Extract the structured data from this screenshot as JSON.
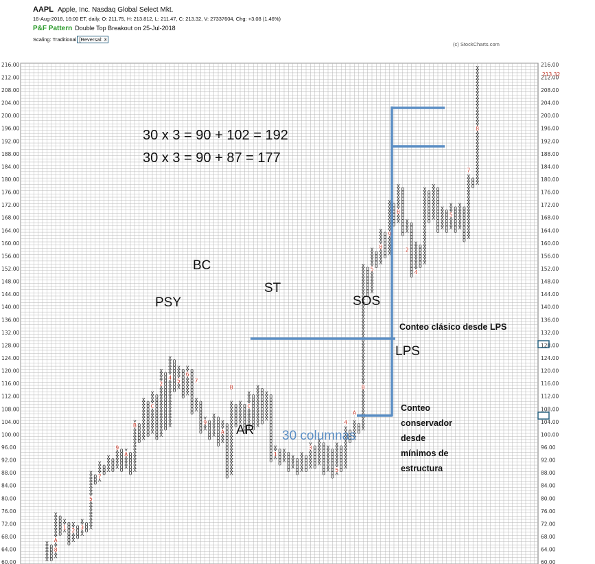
{
  "header": {
    "symbol": "AAPL",
    "company": "Apple, Inc.  Nasdaq Global Select Mkt.",
    "quote_line": "16-Aug-2018, 16:00 ET, daily, O: 211.75, H: 213.812, L: 211.47, C: 213.32, V: 27337604, Chg: +3.08 (1.46%)",
    "pf_label": "P&F Pattern",
    "pattern": "Double Top Breakout on 25-Jul-2018",
    "scaling": "Scaling: Traditional",
    "reversal": "[Reversal: 3",
    "copyright": "(c) StockCharts.com"
  },
  "colors": {
    "x": "#333333",
    "o": "#333333",
    "month": "#c0392b",
    "annotation_blue": "#5b8ec4",
    "grid": "#b5b5b5",
    "highlight_box": "#27607f"
  },
  "chart_data": {
    "type": "point_and_figure",
    "box_size": 1,
    "reversal": 3,
    "ylim": [
      60,
      216
    ],
    "left_axis_ticks": [
      "216.00",
      "212.00",
      "208.00",
      "204.00",
      "200.00",
      "196.00",
      "192.00",
      "188.00",
      "184.00",
      "180.00",
      "176.00",
      "172.00",
      "168.00",
      "164.00",
      "160.00",
      "156.00",
      "152.00",
      "148.00",
      "144.00",
      "140.00",
      "136.00",
      "132.00",
      "128.00",
      "124.00",
      "120.00",
      "116.00",
      "112.00",
      "108.00",
      "104.00",
      "100.00",
      "96.00",
      "92.00",
      "88.00",
      "84.00",
      "80.00",
      "76.00",
      "72.00",
      "68.00",
      "64.00",
      "60.00"
    ],
    "right_axis_ticks": [
      "216.00",
      "212.00",
      "208.00",
      "204.00",
      "200.00",
      "196.00",
      "192.00",
      "188.00",
      "184.00",
      "180.00",
      "176.00",
      "172.00",
      "168.00",
      "164.00",
      "160.00",
      "156.00",
      "152.00",
      "148.00",
      "144.00",
      "140.00",
      "136.00",
      "132.00",
      "128.00",
      "124.00",
      "120.00",
      "116.00",
      "112.00",
      "108.00",
      "104.00",
      "100.00",
      "96.00",
      "92.00",
      "88.00",
      "84.00",
      "80.00",
      "76.00",
      "72.00",
      "68.00",
      "64.00",
      "60.00"
    ],
    "last_price_label": "213.32",
    "highlighted_levels": [
      102,
      87
    ],
    "columns": [
      {
        "t": "X",
        "lo": 61,
        "hi": 66
      },
      {
        "t": "O",
        "lo": 61,
        "hi": 65
      },
      {
        "t": "X",
        "lo": 62,
        "hi": 75
      },
      {
        "t": "O",
        "lo": 69,
        "hi": 74
      },
      {
        "t": "X",
        "lo": 70,
        "hi": 73
      },
      {
        "t": "O",
        "lo": 66,
        "hi": 72
      },
      {
        "t": "X",
        "lo": 67,
        "hi": 72
      },
      {
        "t": "O",
        "lo": 68,
        "hi": 71
      },
      {
        "t": "X",
        "lo": 69,
        "hi": 73
      },
      {
        "t": "O",
        "lo": 70,
        "hi": 72
      },
      {
        "t": "X",
        "lo": 71,
        "hi": 88
      },
      {
        "t": "O",
        "lo": 85,
        "hi": 87
      },
      {
        "t": "X",
        "lo": 86,
        "hi": 91
      },
      {
        "t": "O",
        "lo": 88,
        "hi": 90
      },
      {
        "t": "X",
        "lo": 89,
        "hi": 93
      },
      {
        "t": "O",
        "lo": 89,
        "hi": 92
      },
      {
        "t": "X",
        "lo": 90,
        "hi": 96
      },
      {
        "t": "O",
        "lo": 89,
        "hi": 95
      },
      {
        "t": "X",
        "lo": 90,
        "hi": 95
      },
      {
        "t": "O",
        "lo": 88,
        "hi": 94
      },
      {
        "t": "X",
        "lo": 89,
        "hi": 104
      },
      {
        "t": "O",
        "lo": 98,
        "hi": 103
      },
      {
        "t": "X",
        "lo": 99,
        "hi": 111
      },
      {
        "t": "O",
        "lo": 100,
        "hi": 110
      },
      {
        "t": "X",
        "lo": 101,
        "hi": 113
      },
      {
        "t": "O",
        "lo": 99,
        "hi": 112
      },
      {
        "t": "X",
        "lo": 100,
        "hi": 120
      },
      {
        "t": "O",
        "lo": 102,
        "hi": 119
      },
      {
        "t": "X",
        "lo": 103,
        "hi": 124
      },
      {
        "t": "O",
        "lo": 114,
        "hi": 123
      },
      {
        "t": "X",
        "lo": 115,
        "hi": 121
      },
      {
        "t": "O",
        "lo": 112,
        "hi": 120
      },
      {
        "t": "X",
        "lo": 113,
        "hi": 121
      },
      {
        "t": "O",
        "lo": 107,
        "hi": 120
      },
      {
        "t": "X",
        "lo": 108,
        "hi": 111
      },
      {
        "t": "O",
        "lo": 101,
        "hi": 110
      },
      {
        "t": "X",
        "lo": 102,
        "hi": 105
      },
      {
        "t": "O",
        "lo": 99,
        "hi": 104
      },
      {
        "t": "X",
        "lo": 100,
        "hi": 106
      },
      {
        "t": "O",
        "lo": 97,
        "hi": 105
      },
      {
        "t": "X",
        "lo": 98,
        "hi": 104
      },
      {
        "t": "O",
        "lo": 87,
        "hi": 103
      },
      {
        "t": "X",
        "lo": 88,
        "hi": 110
      },
      {
        "t": "O",
        "lo": 103,
        "hi": 109
      },
      {
        "t": "X",
        "lo": 104,
        "hi": 110
      },
      {
        "t": "O",
        "lo": 101,
        "hi": 109
      },
      {
        "t": "X",
        "lo": 102,
        "hi": 113
      },
      {
        "t": "O",
        "lo": 102,
        "hi": 112
      },
      {
        "t": "X",
        "lo": 103,
        "hi": 115
      },
      {
        "t": "O",
        "lo": 104,
        "hi": 114
      },
      {
        "t": "X",
        "lo": 105,
        "hi": 113
      },
      {
        "t": "O",
        "lo": 92,
        "hi": 112
      },
      {
        "t": "X",
        "lo": 93,
        "hi": 96
      },
      {
        "t": "O",
        "lo": 91,
        "hi": 95
      },
      {
        "t": "X",
        "lo": 92,
        "hi": 95
      },
      {
        "t": "O",
        "lo": 89,
        "hi": 94
      },
      {
        "t": "X",
        "lo": 90,
        "hi": 93
      },
      {
        "t": "O",
        "lo": 88,
        "hi": 92
      },
      {
        "t": "X",
        "lo": 89,
        "hi": 94
      },
      {
        "t": "O",
        "lo": 89,
        "hi": 93
      },
      {
        "t": "X",
        "lo": 90,
        "hi": 97
      },
      {
        "t": "O",
        "lo": 90,
        "hi": 96
      },
      {
        "t": "X",
        "lo": 91,
        "hi": 98
      },
      {
        "t": "O",
        "lo": 88,
        "hi": 97
      },
      {
        "t": "X",
        "lo": 89,
        "hi": 96
      },
      {
        "t": "O",
        "lo": 87,
        "hi": 95
      },
      {
        "t": "X",
        "lo": 88,
        "hi": 97
      },
      {
        "t": "O",
        "lo": 89,
        "hi": 96
      },
      {
        "t": "X",
        "lo": 90,
        "hi": 102
      },
      {
        "t": "O",
        "lo": 98,
        "hi": 101
      },
      {
        "t": "X",
        "lo": 99,
        "hi": 104
      },
      {
        "t": "O",
        "lo": 101,
        "hi": 103
      },
      {
        "t": "X",
        "lo": 102,
        "hi": 153
      },
      {
        "t": "O",
        "lo": 144,
        "hi": 152
      },
      {
        "t": "X",
        "lo": 145,
        "hi": 158
      },
      {
        "t": "O",
        "lo": 153,
        "hi": 157
      },
      {
        "t": "X",
        "lo": 154,
        "hi": 164
      },
      {
        "t": "O",
        "lo": 156,
        "hi": 163
      },
      {
        "t": "X",
        "lo": 157,
        "hi": 173
      },
      {
        "t": "O",
        "lo": 166,
        "hi": 172
      },
      {
        "t": "X",
        "lo": 167,
        "hi": 178
      },
      {
        "t": "O",
        "lo": 163,
        "hi": 177
      },
      {
        "t": "X",
        "lo": 164,
        "hi": 167
      },
      {
        "t": "O",
        "lo": 150,
        "hi": 166
      },
      {
        "t": "X",
        "lo": 151,
        "hi": 160
      },
      {
        "t": "O",
        "lo": 153,
        "hi": 159
      },
      {
        "t": "X",
        "lo": 154,
        "hi": 177
      },
      {
        "t": "O",
        "lo": 167,
        "hi": 176
      },
      {
        "t": "X",
        "lo": 168,
        "hi": 178
      },
      {
        "t": "O",
        "lo": 164,
        "hi": 177
      },
      {
        "t": "X",
        "lo": 165,
        "hi": 171
      },
      {
        "t": "O",
        "lo": 164,
        "hi": 170
      },
      {
        "t": "X",
        "lo": 165,
        "hi": 172
      },
      {
        "t": "O",
        "lo": 164,
        "hi": 171
      },
      {
        "t": "X",
        "lo": 165,
        "hi": 172
      },
      {
        "t": "O",
        "lo": 161,
        "hi": 171
      },
      {
        "t": "X",
        "lo": 162,
        "hi": 181
      },
      {
        "t": "O",
        "lo": 178,
        "hi": 180
      },
      {
        "t": "X",
        "lo": 179,
        "hi": 215
      }
    ],
    "month_markers": [
      {
        "col": 2,
        "v": 64,
        "label": "8"
      },
      {
        "col": 2,
        "v": 67,
        "label": "A"
      },
      {
        "col": 4,
        "v": 71,
        "label": "1"
      },
      {
        "col": 6,
        "v": 70,
        "label": "2"
      },
      {
        "col": 8,
        "v": 71,
        "label": "3"
      },
      {
        "col": 10,
        "v": 80,
        "label": "5"
      },
      {
        "col": 12,
        "v": 87,
        "label": "7"
      },
      {
        "col": 16,
        "v": 96,
        "label": "9"
      },
      {
        "col": 18,
        "v": 94,
        "label": "A"
      },
      {
        "col": 20,
        "v": 103,
        "label": "B"
      },
      {
        "col": 24,
        "v": 109,
        "label": "C"
      },
      {
        "col": 26,
        "v": 116,
        "label": "2"
      },
      {
        "col": 28,
        "v": 118,
        "label": "4"
      },
      {
        "col": 30,
        "v": 117,
        "label": "5"
      },
      {
        "col": 32,
        "v": 119,
        "label": "6"
      },
      {
        "col": 34,
        "v": 117,
        "label": "7"
      },
      {
        "col": 36,
        "v": 104,
        "label": "9"
      },
      {
        "col": 40,
        "v": 101,
        "label": "A"
      },
      {
        "col": 42,
        "v": 115,
        "label": "B"
      },
      {
        "col": 46,
        "v": 109,
        "label": "C"
      },
      {
        "col": 52,
        "v": 94,
        "label": "1"
      },
      {
        "col": 60,
        "v": 96,
        "label": "3"
      },
      {
        "col": 66,
        "v": 89,
        "label": "5"
      },
      {
        "col": 68,
        "v": 104,
        "label": "4"
      },
      {
        "col": 70,
        "v": 107,
        "label": "A"
      },
      {
        "col": 72,
        "v": 115,
        "label": "B"
      },
      {
        "col": 74,
        "v": 152,
        "label": "5"
      },
      {
        "col": 76,
        "v": 159,
        "label": "8"
      },
      {
        "col": 78,
        "v": 163,
        "label": "9"
      },
      {
        "col": 80,
        "v": 170,
        "label": "B"
      },
      {
        "col": 82,
        "v": 158,
        "label": "2"
      },
      {
        "col": 84,
        "v": 151,
        "label": "4"
      },
      {
        "col": 92,
        "v": 169,
        "label": "5"
      },
      {
        "col": 96,
        "v": 183,
        "label": "7"
      },
      {
        "col": 98,
        "v": 196,
        "label": "8"
      }
    ]
  },
  "annotations": {
    "formula_1": "30 x 3 = 90 + 102 = 192",
    "formula_2": "30 x 3 = 90 + 87 = 177",
    "psy": "PSY",
    "bc": "BC",
    "st": "ST",
    "sos": "SOS",
    "ar": "AR",
    "lps": "LPS",
    "columns_count": "30 columnas",
    "classic_count": "Conteo clásico desde LPS",
    "conservative_count": [
      "Conteo",
      "conservador",
      "desde",
      "mínimos de",
      "estructura"
    ]
  }
}
